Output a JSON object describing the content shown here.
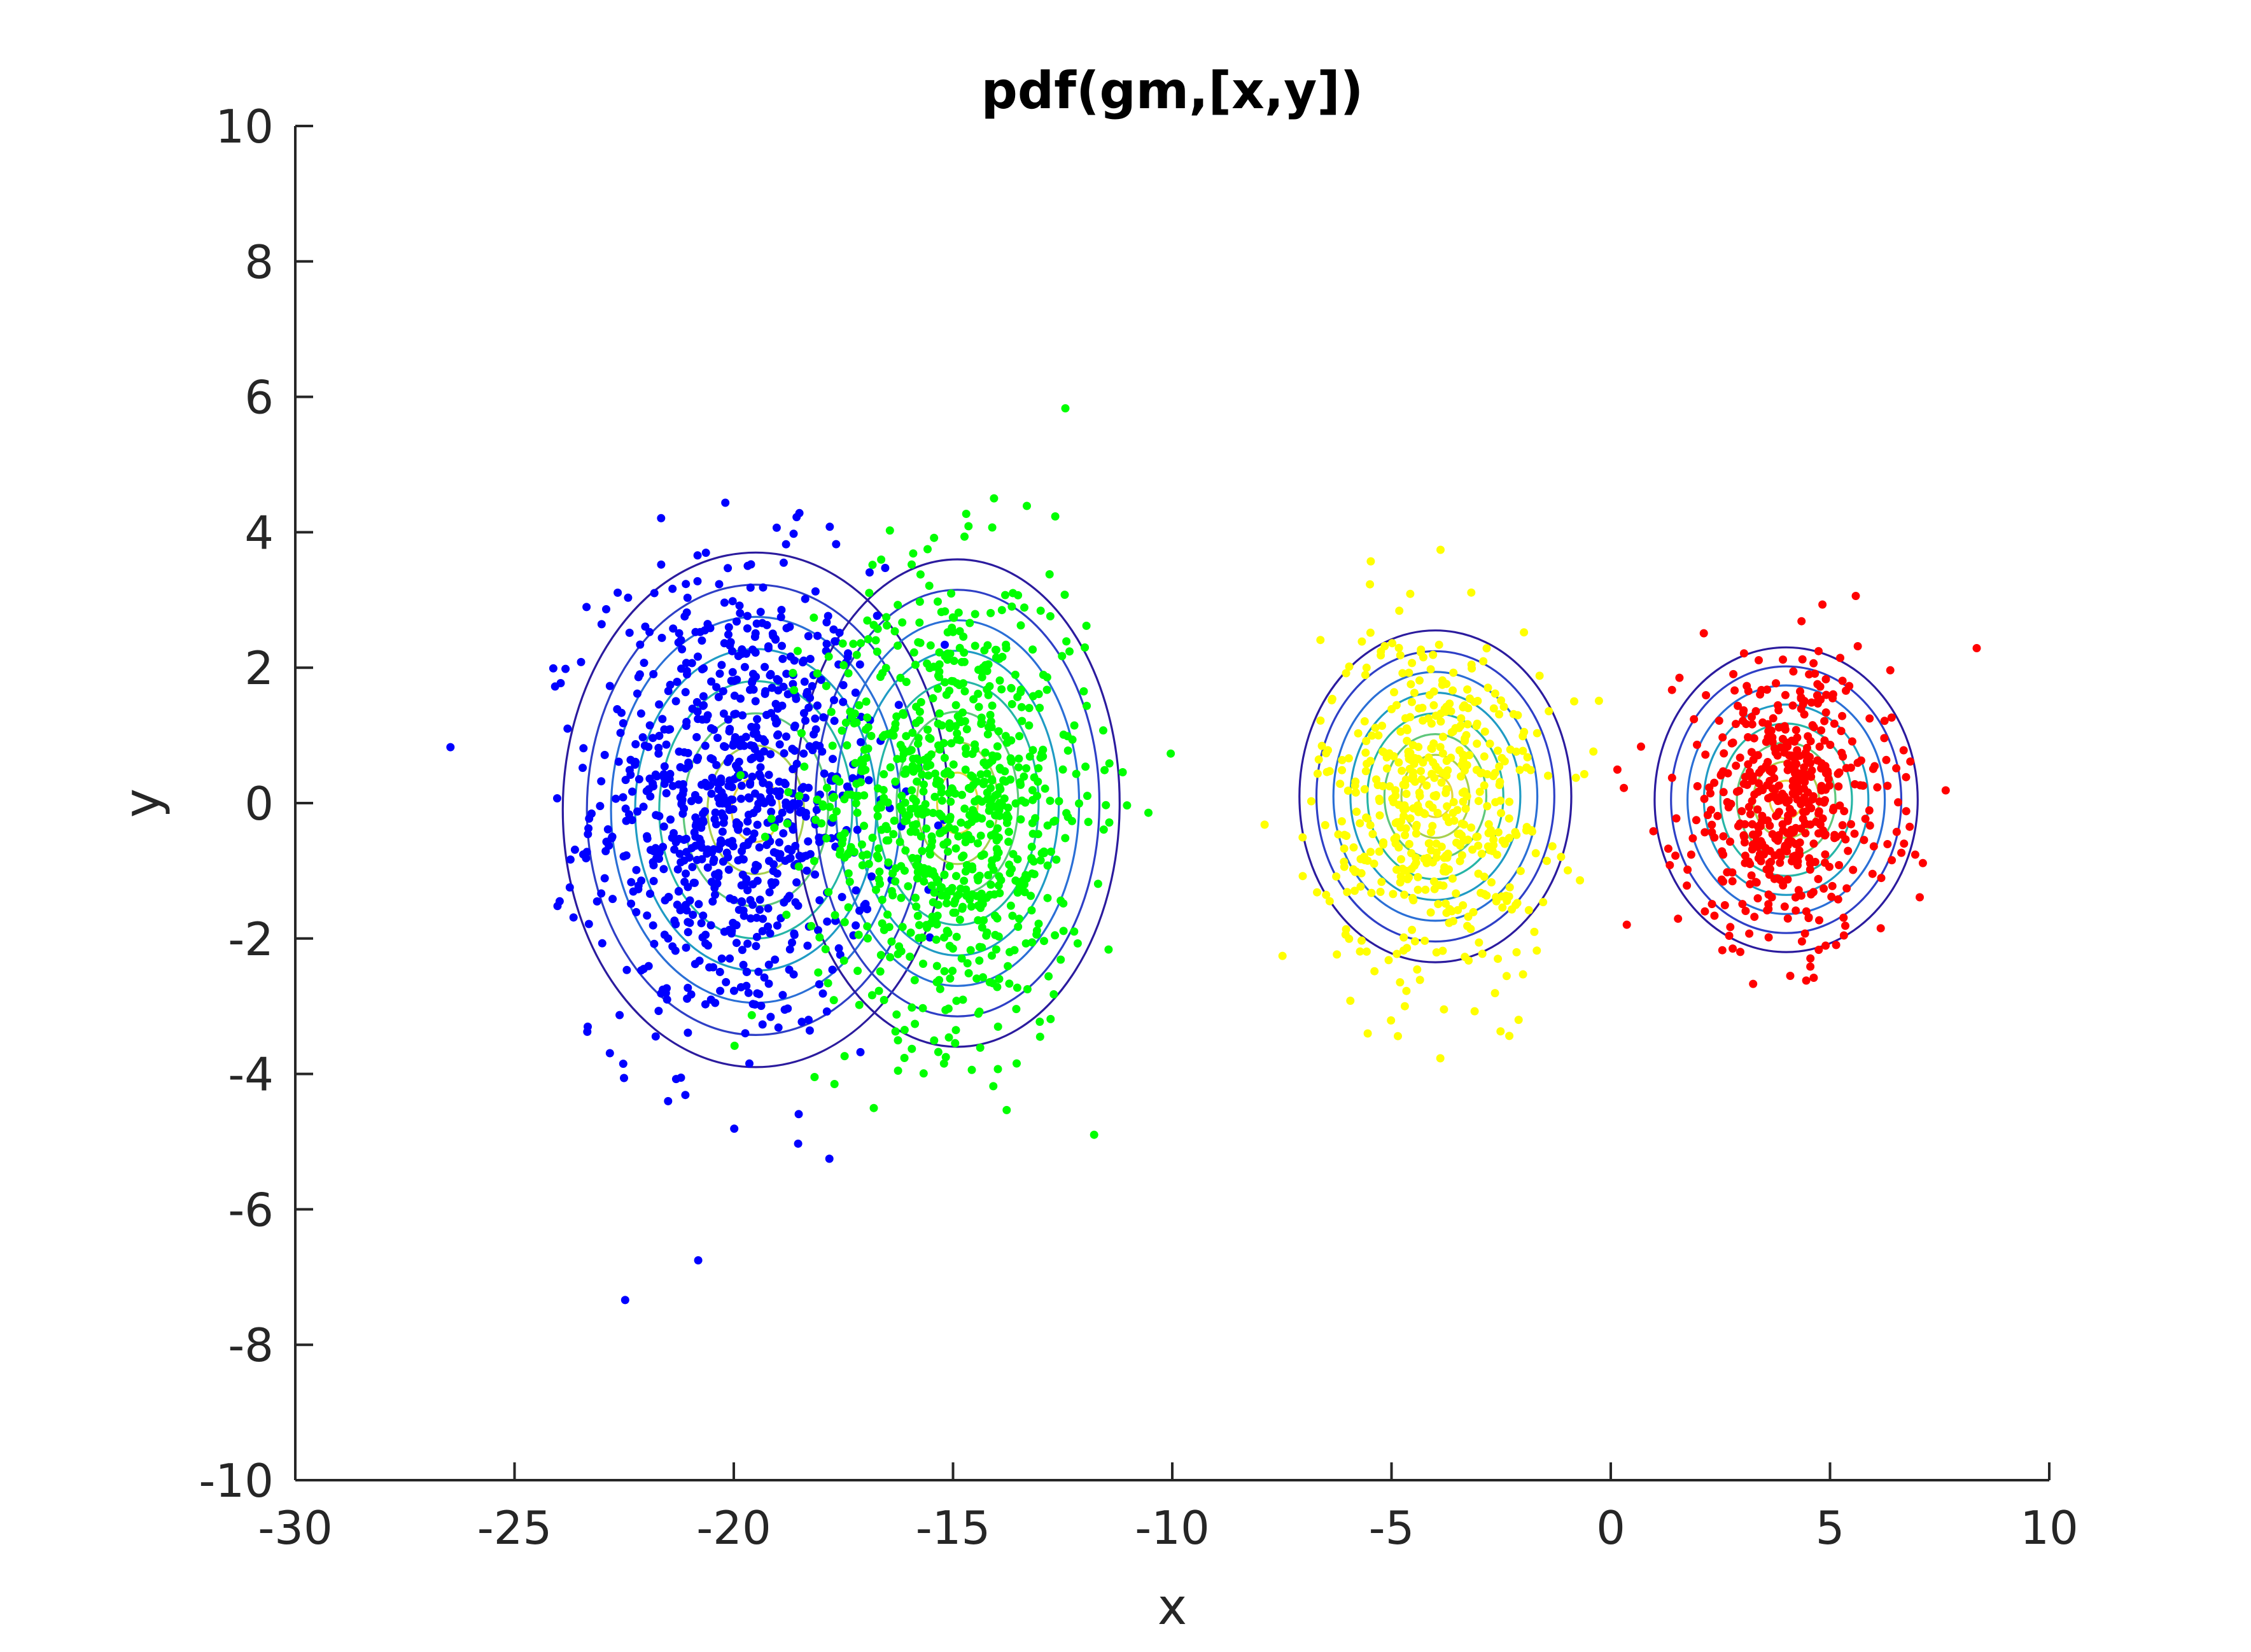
{
  "chart_data": {
    "type": "scatter",
    "title": "pdf(gm,[x,y])",
    "xlabel": "x",
    "ylabel": "y",
    "xlim": [
      -30,
      10
    ],
    "ylim": [
      -10,
      10
    ],
    "xticks": [
      "-30",
      "-25",
      "-20",
      "-15",
      "-10",
      "-5",
      "0",
      "5",
      "10"
    ],
    "yticks": [
      "-10",
      "-8",
      "-6",
      "-4",
      "-2",
      "0",
      "2",
      "4",
      "6",
      "8",
      "10"
    ],
    "grid": false,
    "legend": "none",
    "contour_colors": [
      "#2b1b9e",
      "#2e3fc6",
      "#2a6fd6",
      "#1f9bc4",
      "#26b5a6",
      "#5fc77c",
      "#a6cf4f",
      "#e3d43b"
    ],
    "series": [
      {
        "color": "#0000ff",
        "center": [
          -20,
          0
        ],
        "spread": [
          1.6,
          1.75
        ],
        "count": 850
      },
      {
        "color": "#00ff00",
        "center": [
          -15,
          0
        ],
        "spread": [
          1.55,
          1.7
        ],
        "count": 850
      },
      {
        "color": "#ffff00",
        "center": [
          -4,
          0
        ],
        "spread": [
          1.3,
          1.3
        ],
        "count": 500
      },
      {
        "color": "#ff0000",
        "center": [
          4,
          0
        ],
        "spread": [
          1.2,
          1.05
        ],
        "count": 500
      }
    ],
    "contours": [
      {
        "center": [
          -19.5,
          -0.1
        ],
        "radii": [
          4.4,
          3.8
        ]
      },
      {
        "center": [
          -14.9,
          0.0
        ],
        "radii": [
          3.7,
          3.6
        ]
      },
      {
        "center": [
          -4.0,
          0.1
        ],
        "radii": [
          3.1,
          2.45
        ]
      },
      {
        "center": [
          4.0,
          0.05
        ],
        "radii": [
          3.0,
          2.25
        ]
      }
    ]
  }
}
